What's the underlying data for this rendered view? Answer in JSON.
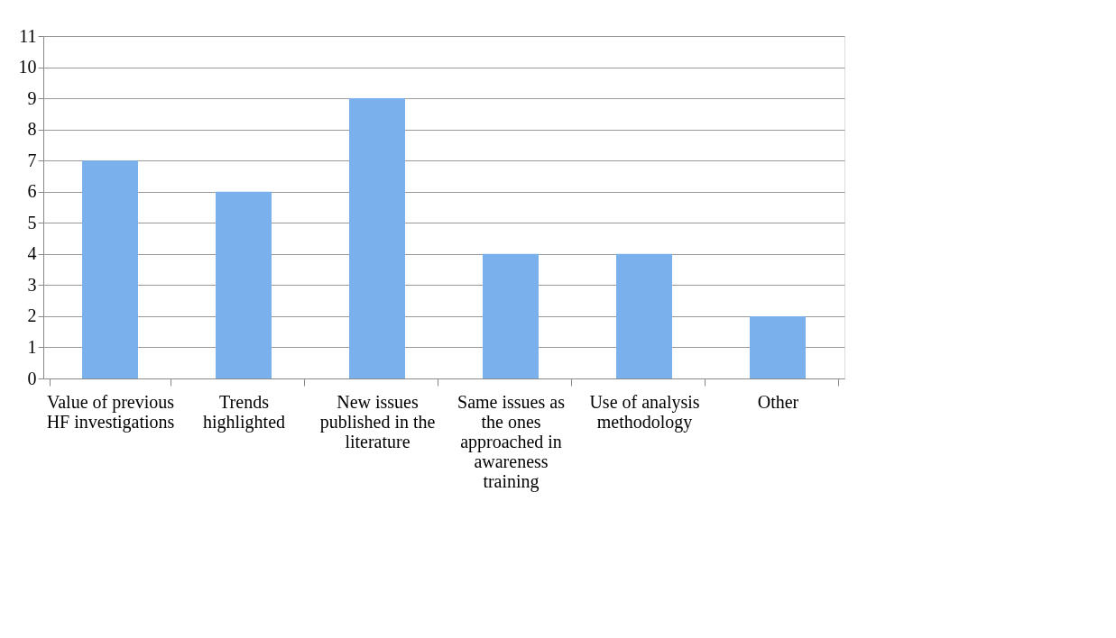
{
  "chart_data": {
    "type": "bar",
    "categories": [
      "Value of previous HF investigations",
      "Trends highlighted",
      "New issues published in the literature",
      "Same issues as the ones approached in awareness training",
      "Use of analysis methodology",
      "Other"
    ],
    "values": [
      7,
      6,
      9,
      4,
      4,
      2
    ],
    "color": "#7ab0ec",
    "ylim": [
      0,
      11
    ],
    "yticks": [
      0,
      1,
      2,
      3,
      4,
      5,
      6,
      7,
      8,
      9,
      10,
      11
    ],
    "grid": "y"
  }
}
